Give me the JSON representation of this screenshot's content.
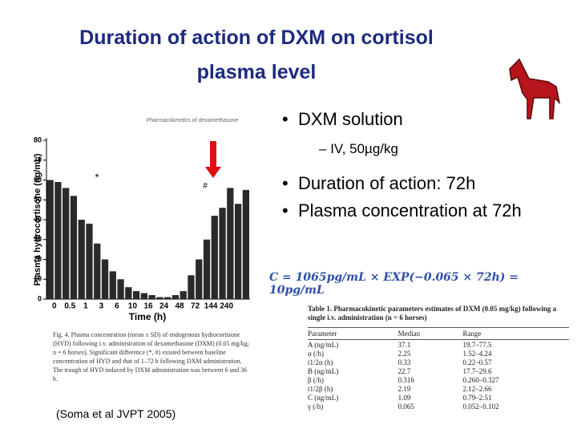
{
  "slide": {
    "title": [
      "Duration of action of DXM on cortisol",
      "plasma level"
    ],
    "bullets": [
      "DXM solution",
      "IV, 50µg/kg",
      "Duration of action: 72h",
      "Plasma concentration at 72h"
    ],
    "equation": "C = 1065pg/mL × EXP(−0.065 × 72h) = 10pg/mL",
    "caption": "Fig. 4. Plasma concentration (mean ± SD) of endogenous hydrocortisone (HYD) following i.v. administration of dexamethasone (DXM) (0.05 mg/kg; n = 6 horses). Significant difference (*, #) existed between baseline concentration of HYD and that of 1–72 h following DXM administration. The trough of HYD induced by DXM administration was between 6 and 36 h.",
    "citation": "(Soma et al JVPT 2005)"
  },
  "chart_data": {
    "type": "bar",
    "title": "Pharmacokinetics of dexamethasone",
    "x_label": "Time (h)",
    "y_label": "Plasma hydrocortisone (ng/mL)",
    "categories": [
      "0",
      null,
      "0.5",
      null,
      "1",
      null,
      "3",
      null,
      "6",
      null,
      "10",
      null,
      "16",
      null,
      "24",
      null,
      "48",
      null,
      "72",
      null,
      "144",
      null,
      "240",
      null,
      null,
      null
    ],
    "values": [
      60,
      59,
      56,
      52,
      40,
      38,
      28,
      20,
      14,
      10,
      6,
      4,
      3,
      2,
      1,
      1,
      2,
      4,
      12,
      20,
      30,
      42,
      46,
      56,
      48,
      55
    ],
    "color": "#2a2a2a",
    "ylim": [
      0,
      80
    ],
    "yticks": [
      0,
      10,
      20,
      30,
      40,
      50,
      60,
      70,
      80
    ],
    "annotations": [
      "*",
      "#"
    ]
  },
  "table": {
    "caption": "Table 1. Pharmacokinetic parameters estimates of DXM (0.05 mg/kg) following a single i.v. administration (n = 6 horses)",
    "header": [
      "Parameter",
      "Median",
      "Range"
    ],
    "rows": [
      [
        "A (ng/mL)",
        "37.1",
        "19.7–77.5"
      ],
      [
        "α (/h)",
        "2.25",
        "1.52–4.24"
      ],
      [
        "t1/2α (h)",
        "0.33",
        "0.22–0.57"
      ],
      [
        "B (ng/mL)",
        "22.7",
        "17.7–29.6"
      ],
      [
        "β (/h)",
        "0.316",
        "0.260–0.327"
      ],
      [
        "t1/2β (h)",
        "2.19",
        "2.12–2.66"
      ],
      [
        "C (ng/mL)",
        "1.09",
        "0.79–2.51"
      ],
      [
        "γ (/h)",
        "0.065",
        "0.052–0.102"
      ]
    ]
  }
}
